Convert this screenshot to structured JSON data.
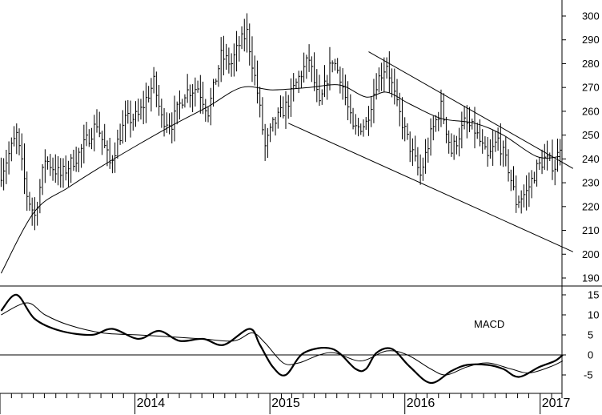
{
  "chart_data": [
    {
      "type": "ohlc-bar",
      "title": "",
      "y_axis": {
        "min": 185,
        "max": 303,
        "ticks": [
          190,
          200,
          210,
          220,
          230,
          240,
          250,
          260,
          270,
          280,
          290,
          300
        ],
        "position": "right"
      },
      "x_axis": {
        "start": "2013-01",
        "end": "2017-03",
        "year_ticks": [
          "2014",
          "2015",
          "2016",
          "2017"
        ]
      },
      "grid": false,
      "price_anchors": [
        [
          "2013-01-04",
          234
        ],
        [
          "2013-02-15",
          250
        ],
        [
          "2013-03-15",
          225
        ],
        [
          "2013-04-05",
          216
        ],
        [
          "2013-05-03",
          240
        ],
        [
          "2013-06-14",
          233
        ],
        [
          "2013-08-02",
          242
        ],
        [
          "2013-09-20",
          255
        ],
        [
          "2013-10-25",
          238
        ],
        [
          "2013-12-06",
          256
        ],
        [
          "2014-01-10",
          258
        ],
        [
          "2014-02-21",
          272
        ],
        [
          "2014-03-14",
          257
        ],
        [
          "2014-04-11",
          255
        ],
        [
          "2014-05-16",
          268
        ],
        [
          "2014-06-20",
          270
        ],
        [
          "2014-07-18",
          260
        ],
        [
          "2014-08-22",
          283
        ],
        [
          "2014-09-19",
          280
        ],
        [
          "2014-10-10",
          288
        ],
        [
          "2014-10-31",
          293
        ],
        [
          "2014-11-28",
          268
        ],
        [
          "2014-12-19",
          245
        ],
        [
          "2015-01-09",
          254
        ],
        [
          "2015-02-13",
          262
        ],
        [
          "2015-03-20",
          274
        ],
        [
          "2015-04-17",
          282
        ],
        [
          "2015-05-15",
          262
        ],
        [
          "2015-06-19",
          282
        ],
        [
          "2015-07-10",
          275
        ],
        [
          "2015-08-14",
          252
        ],
        [
          "2015-09-18",
          255
        ],
        [
          "2015-10-16",
          272
        ],
        [
          "2015-11-13",
          280
        ],
        [
          "2015-12-11",
          262
        ],
        [
          "2016-01-15",
          245
        ],
        [
          "2016-02-12",
          233
        ],
        [
          "2016-03-11",
          250
        ],
        [
          "2016-04-08",
          262
        ],
        [
          "2016-05-06",
          243
        ],
        [
          "2016-06-10",
          255
        ],
        [
          "2016-07-08",
          252
        ],
        [
          "2016-08-12",
          240
        ],
        [
          "2016-09-09",
          248
        ],
        [
          "2016-10-07",
          236
        ],
        [
          "2016-10-28",
          222
        ],
        [
          "2016-11-25",
          226
        ],
        [
          "2016-12-23",
          236
        ],
        [
          "2017-01-13",
          240
        ],
        [
          "2017-02-10",
          237
        ],
        [
          "2017-02-24",
          246
        ]
      ],
      "moving_average_anchors": [
        [
          "2013-01-04",
          192
        ],
        [
          "2013-04-05",
          218
        ],
        [
          "2013-07-05",
          228
        ],
        [
          "2013-10-04",
          237
        ],
        [
          "2014-01-10",
          246
        ],
        [
          "2014-04-11",
          254
        ],
        [
          "2014-07-18",
          262
        ],
        [
          "2014-10-17",
          270
        ],
        [
          "2015-01-09",
          269
        ],
        [
          "2015-04-17",
          270
        ],
        [
          "2015-07-10",
          271
        ],
        [
          "2015-09-18",
          266
        ],
        [
          "2015-11-13",
          268
        ],
        [
          "2016-01-15",
          263
        ],
        [
          "2016-04-08",
          257
        ],
        [
          "2016-07-08",
          255
        ],
        [
          "2016-09-23",
          250
        ],
        [
          "2016-12-23",
          241
        ],
        [
          "2017-02-24",
          241
        ]
      ],
      "trend_lines": [
        {
          "from": [
            "2015-09-25",
            285
          ],
          "to": [
            "2017-03-31",
            236
          ]
        },
        {
          "from": [
            "2015-02-20",
            255
          ],
          "to": [
            "2017-03-31",
            201
          ]
        }
      ]
    },
    {
      "type": "line",
      "label": "MACD",
      "y_axis": {
        "min": -8.5,
        "max": 16,
        "ticks": [
          -5,
          0,
          5,
          10,
          15
        ],
        "position": "right"
      },
      "zero_line": true,
      "grid": false,
      "series": [
        {
          "style": "thick",
          "points": [
            [
              "2013-01-04",
              11
            ],
            [
              "2013-02-15",
              15
            ],
            [
              "2013-04-05",
              9
            ],
            [
              "2013-06-14",
              6
            ],
            [
              "2013-09-06",
              5
            ],
            [
              "2013-11-01",
              6.5
            ],
            [
              "2014-01-10",
              4
            ],
            [
              "2014-03-07",
              6
            ],
            [
              "2014-05-02",
              3.5
            ],
            [
              "2014-07-04",
              4
            ],
            [
              "2014-08-29",
              2.5
            ],
            [
              "2014-11-07",
              6.5
            ],
            [
              "2014-12-05",
              2.5
            ],
            [
              "2015-01-09",
              -3
            ],
            [
              "2015-02-13",
              -5
            ],
            [
              "2015-04-03",
              0.5
            ],
            [
              "2015-06-19",
              1.5
            ],
            [
              "2015-08-21",
              -3.5
            ],
            [
              "2015-09-18",
              -3.5
            ],
            [
              "2015-10-16",
              0.5
            ],
            [
              "2015-11-27",
              1.5
            ],
            [
              "2016-01-15",
              -3
            ],
            [
              "2016-03-11",
              -7
            ],
            [
              "2016-05-06",
              -4
            ],
            [
              "2016-06-17",
              -2.5
            ],
            [
              "2016-08-12",
              -2.5
            ],
            [
              "2016-09-23",
              -3.5
            ],
            [
              "2016-11-04",
              -5.5
            ],
            [
              "2016-12-30",
              -3
            ],
            [
              "2017-02-10",
              -1.5
            ],
            [
              "2017-03-03",
              0
            ]
          ]
        },
        {
          "style": "thin",
          "points": [
            [
              "2013-01-04",
              10
            ],
            [
              "2013-03-15",
              13
            ],
            [
              "2013-05-03",
              10
            ],
            [
              "2013-07-05",
              7.5
            ],
            [
              "2013-10-04",
              5.5
            ],
            [
              "2014-01-10",
              5
            ],
            [
              "2014-04-11",
              4.5
            ],
            [
              "2014-07-04",
              4
            ],
            [
              "2014-09-26",
              3.5
            ],
            [
              "2014-11-14",
              5.5
            ],
            [
              "2014-12-19",
              3
            ],
            [
              "2015-02-06",
              -2
            ],
            [
              "2015-03-20",
              -2
            ],
            [
              "2015-05-15",
              0
            ],
            [
              "2015-06-26",
              0.5
            ],
            [
              "2015-09-04",
              -1.5
            ],
            [
              "2015-11-13",
              1
            ],
            [
              "2016-01-08",
              0
            ],
            [
              "2016-03-11",
              -3.5
            ],
            [
              "2016-04-22",
              -5
            ],
            [
              "2016-06-17",
              -3
            ],
            [
              "2016-08-12",
              -2
            ],
            [
              "2016-10-14",
              -3.5
            ],
            [
              "2016-12-02",
              -4.5
            ],
            [
              "2017-01-27",
              -3
            ],
            [
              "2017-03-03",
              -1.5
            ]
          ]
        }
      ]
    }
  ]
}
